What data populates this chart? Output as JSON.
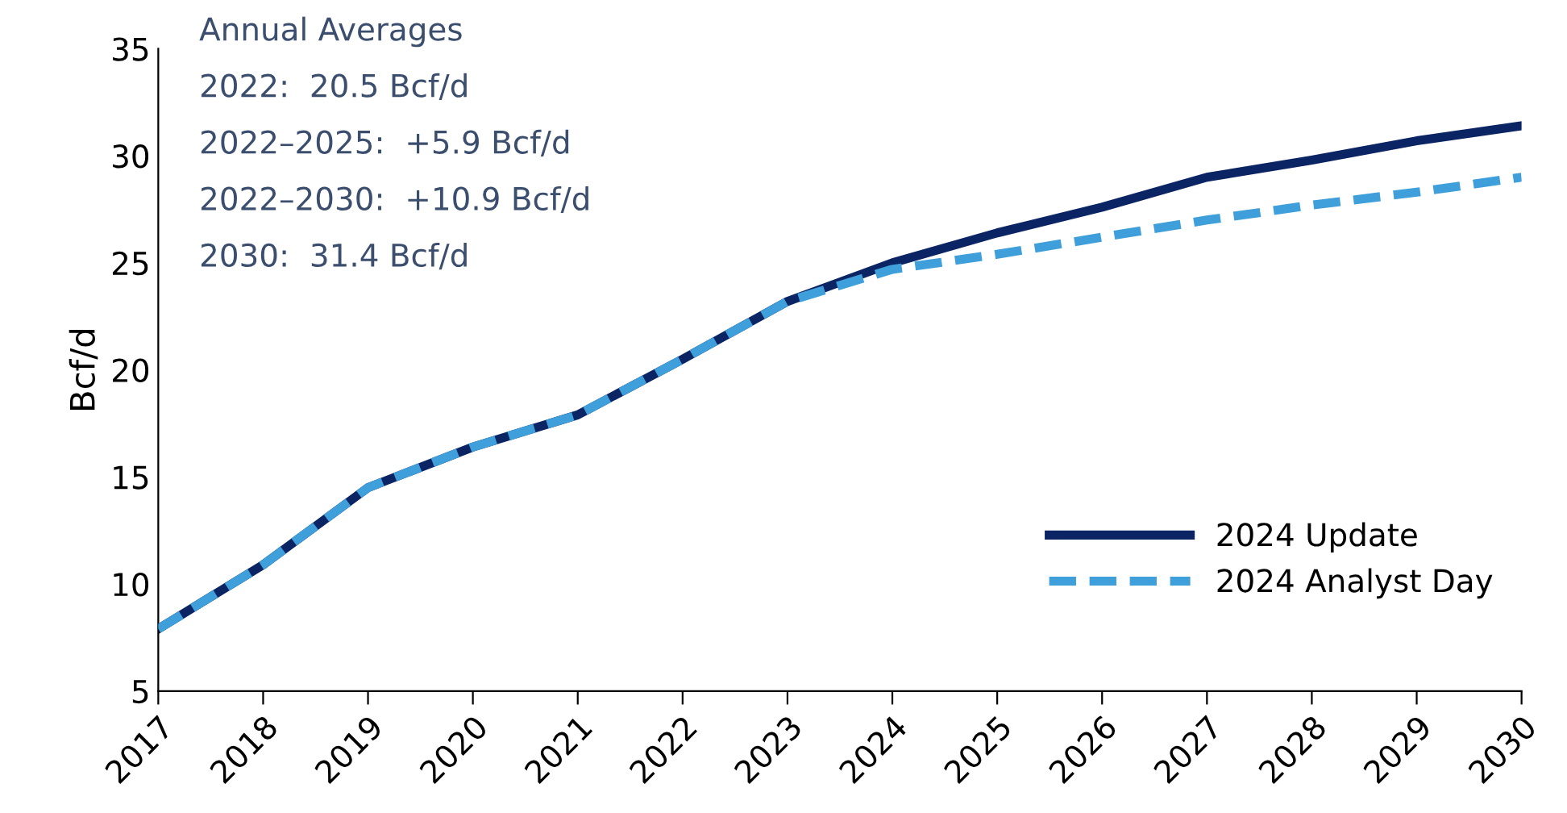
{
  "chart_data": {
    "type": "line",
    "ylabel": "Bcf/d",
    "x": [
      2017,
      2018,
      2019,
      2020,
      2021,
      2022,
      2023,
      2024,
      2025,
      2026,
      2027,
      2028,
      2029,
      2030
    ],
    "series": [
      {
        "name": "2024 Update",
        "color": "#0b2463",
        "line_style": "solid",
        "values": [
          7.9,
          10.9,
          14.5,
          16.4,
          17.9,
          20.5,
          23.2,
          25.0,
          26.4,
          27.6,
          29.0,
          29.8,
          30.7,
          31.4
        ]
      },
      {
        "name": "2024 Analyst Day",
        "color": "#3f9fda",
        "line_style": "dashed",
        "values": [
          7.9,
          10.9,
          14.5,
          16.4,
          17.9,
          20.5,
          23.2,
          24.7,
          25.4,
          26.2,
          27.0,
          27.7,
          28.3,
          29.0
        ]
      }
    ],
    "xlim": [
      2017,
      2030
    ],
    "xticks": [
      2017,
      2018,
      2019,
      2020,
      2021,
      2022,
      2023,
      2024,
      2025,
      2026,
      2027,
      2028,
      2029,
      2030
    ],
    "ylim": [
      5,
      35
    ],
    "yticks": [
      5,
      10,
      15,
      20,
      25,
      30,
      35
    ],
    "grid": false,
    "legend": "bottom right",
    "marker": "none",
    "annotations": [
      "Annual Averages",
      "2022:  20.5 Bcf/d",
      "2022–2025:  +5.9 Bcf/d",
      "2022–2030:  +10.9 Bcf/d",
      "2030:  31.4 Bcf/d"
    ]
  }
}
